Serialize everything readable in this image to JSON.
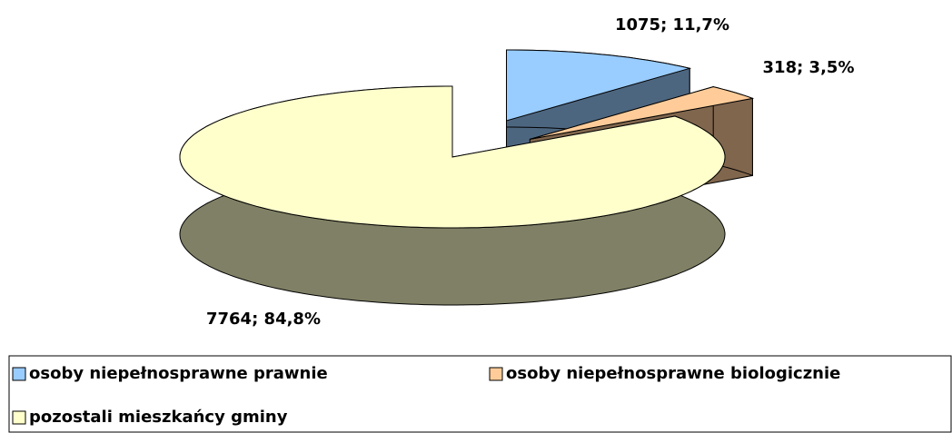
{
  "chart_data": {
    "type": "pie",
    "categories": [
      "osoby niepełnosprawne prawnie",
      "osoby niepełnosprawne biologicznie",
      "pozostali mieszkańcy gminy"
    ],
    "values": [
      1075,
      318,
      7764
    ],
    "value_labels": [
      "1075; 11,7%",
      "318; 3,5%",
      "7764; 84,8%"
    ],
    "colors": [
      "#99ccff",
      "#ffcc99",
      "#ffffcc"
    ],
    "legend": "bottom"
  }
}
